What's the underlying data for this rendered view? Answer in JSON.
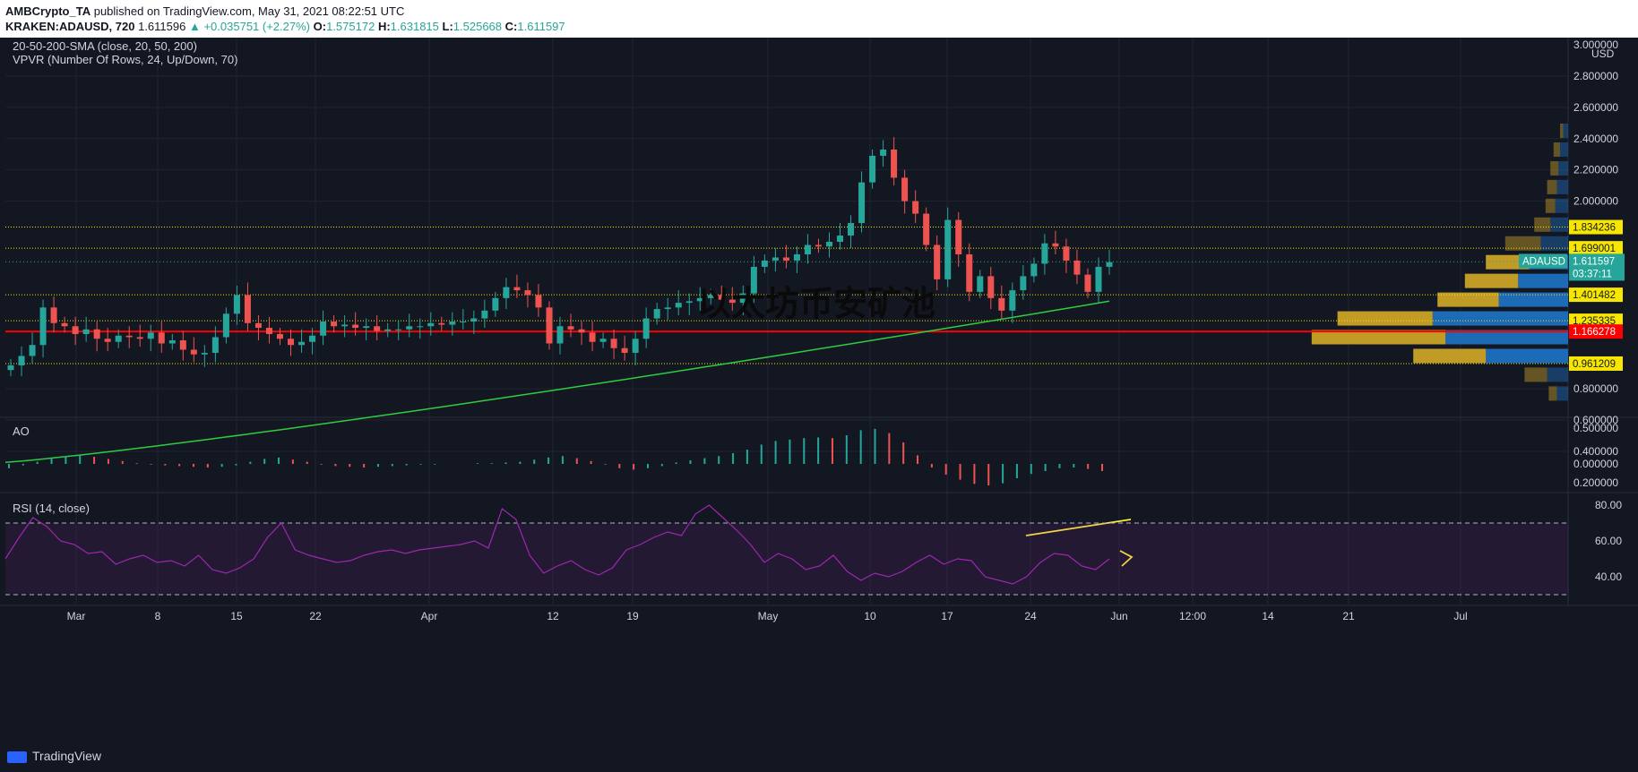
{
  "header": {
    "publisher": "AMBCrypto_TA",
    "published_text": "published on TradingView.com, May 31, 2021 08:22:51 UTC",
    "symbol": "KRAKEN:ADAUSD, 720",
    "last": "1.611596",
    "change": "▲ +0.035751 (+2.27%)",
    "o_label": "O:",
    "o_value": "1.575172",
    "h_label": "H:",
    "h_value": "1.631815",
    "l_label": "L:",
    "l_value": "1.525668",
    "c_label": "C:",
    "c_value": "1.611597"
  },
  "indicators": {
    "sma_label": "20-50-200-SMA (close, 20, 50, 200)",
    "vpvr_label": "VPVR (Number Of Rows, 24, Up/Down, 70)",
    "ao_label": "AO",
    "rsi_label": "RSI (14, close)"
  },
  "watermark": "以太坊币安矿池",
  "footer": {
    "brand": "TradingView"
  },
  "colors": {
    "background": "#131722",
    "up": "#26a69a",
    "down": "#ef5350",
    "sma200": "#2ecc40",
    "support_line": "#f7e600",
    "red_line": "#ff0000",
    "rsi": "#9c27b0",
    "vpvr_up": "#1e6fbf",
    "vpvr_down": "#c9a227",
    "arrow": "#ffeb3b"
  },
  "chart_data": {
    "type": "candlestick",
    "price_axis": {
      "unit": "USD",
      "ticks": [
        "3.000000",
        "2.800000",
        "2.600000",
        "2.400000",
        "2.200000",
        "2.000000",
        "0.800000",
        "0.600000",
        "0.400000",
        "0.200000"
      ],
      "ylim": [
        0.2,
        3.0
      ]
    },
    "time_axis": {
      "ticks": [
        "Mar",
        "8",
        "15",
        "22",
        "Apr",
        "12",
        "19",
        "May",
        "10",
        "17",
        "24",
        "Jun",
        "12:00",
        "14",
        "21",
        "Jul"
      ]
    },
    "level_tags": [
      {
        "value": 1.834236,
        "label": "1.834236",
        "style": "yellow"
      },
      {
        "value": 1.699001,
        "label": "1.699001",
        "style": "yellow"
      },
      {
        "value": 1.611597,
        "label": "1.611597",
        "style": "teal",
        "symbol": "ADAUSD",
        "countdown": "03:37:11"
      },
      {
        "value": 1.401482,
        "label": "1.401482",
        "style": "yellow"
      },
      {
        "value": 1.235335,
        "label": "1.235335",
        "style": "yellow"
      },
      {
        "value": 1.166278,
        "label": "1.166278",
        "style": "red"
      },
      {
        "value": 0.961209,
        "label": "0.961209",
        "style": "yellow"
      }
    ],
    "closes": [
      0.95,
      1.01,
      1.08,
      1.32,
      1.22,
      1.2,
      1.15,
      1.18,
      1.12,
      1.1,
      1.14,
      1.13,
      1.12,
      1.16,
      1.09,
      1.11,
      1.05,
      1.02,
      1.03,
      1.13,
      1.28,
      1.4,
      1.22,
      1.19,
      1.15,
      1.12,
      1.08,
      1.1,
      1.14,
      1.23,
      1.2,
      1.21,
      1.19,
      1.2,
      1.17,
      1.18,
      1.18,
      1.2,
      1.2,
      1.22,
      1.21,
      1.23,
      1.23,
      1.25,
      1.3,
      1.38,
      1.45,
      1.43,
      1.4,
      1.32,
      1.09,
      1.2,
      1.18,
      1.16,
      1.1,
      1.12,
      1.06,
      1.03,
      1.12,
      1.25,
      1.31,
      1.32,
      1.35,
      1.36,
      1.38,
      1.4,
      1.37,
      1.35,
      1.41,
      1.58,
      1.62,
      1.64,
      1.62,
      1.66,
      1.72,
      1.71,
      1.74,
      1.78,
      1.86,
      2.12,
      2.29,
      2.33,
      2.15,
      2.0,
      1.92,
      1.72,
      1.5,
      1.88,
      1.66,
      1.42,
      1.52,
      1.38,
      1.3,
      1.43,
      1.52,
      1.6,
      1.73,
      1.71,
      1.62,
      1.53,
      1.42,
      1.58,
      1.61
    ],
    "sma200_start": 0.33,
    "sma200_end": 1.36,
    "ao_values": [
      -0.06,
      -0.02,
      0.03,
      0.08,
      0.11,
      0.12,
      0.1,
      0.07,
      0.04,
      0.01,
      -0.01,
      -0.02,
      -0.03,
      -0.04,
      -0.05,
      -0.04,
      -0.02,
      0.03,
      0.07,
      0.09,
      0.06,
      0.03,
      -0.01,
      -0.03,
      -0.04,
      -0.05,
      -0.04,
      -0.03,
      -0.02,
      -0.01,
      -0.01,
      0.0,
      0.0,
      0.01,
      0.01,
      0.02,
      0.03,
      0.06,
      0.09,
      0.11,
      0.08,
      0.04,
      -0.01,
      -0.06,
      -0.08,
      -0.06,
      -0.03,
      0.02,
      0.05,
      0.08,
      0.11,
      0.15,
      0.2,
      0.27,
      0.32,
      0.34,
      0.36,
      0.37,
      0.36,
      0.4,
      0.47,
      0.49,
      0.43,
      0.3,
      0.12,
      -0.05,
      -0.15,
      -0.22,
      -0.28,
      -0.3,
      -0.27,
      -0.2,
      -0.14,
      -0.1,
      -0.06,
      -0.05,
      -0.07,
      -0.1
    ],
    "ao_axis": {
      "ticks": [
        "0.500000",
        "0.000000"
      ]
    },
    "rsi_values": [
      50,
      62,
      73,
      68,
      60,
      58,
      53,
      54,
      47,
      50,
      52,
      48,
      49,
      46,
      52,
      44,
      42,
      45,
      50,
      62,
      70,
      55,
      52,
      50,
      48,
      49,
      52,
      54,
      55,
      53,
      55,
      56,
      57,
      58,
      60,
      56,
      78,
      72,
      52,
      42,
      46,
      49,
      44,
      41,
      45,
      55,
      58,
      62,
      65,
      63,
      75,
      80,
      73,
      66,
      58,
      48,
      53,
      50,
      44,
      46,
      52,
      43,
      38,
      42,
      40,
      43,
      48,
      52,
      47,
      50,
      49,
      40,
      38,
      36,
      40,
      48,
      53,
      52,
      46,
      44,
      50
    ],
    "rsi_axis": {
      "ticks": [
        "80.00",
        "60.00",
        "40.00"
      ],
      "bands": [
        70,
        30
      ]
    },
    "vpvr_rows": [
      {
        "price": 2.45,
        "up": 6,
        "down": 4
      },
      {
        "price": 2.33,
        "up": 10,
        "down": 8
      },
      {
        "price": 2.21,
        "up": 12,
        "down": 10
      },
      {
        "price": 2.09,
        "up": 14,
        "down": 12
      },
      {
        "price": 1.97,
        "up": 16,
        "down": 12
      },
      {
        "price": 1.85,
        "up": 22,
        "down": 20
      },
      {
        "price": 1.73,
        "up": 34,
        "down": 44
      },
      {
        "price": 1.61,
        "up": 48,
        "down": 54
      },
      {
        "price": 1.49,
        "up": 62,
        "down": 66
      },
      {
        "price": 1.37,
        "up": 86,
        "down": 76
      },
      {
        "price": 1.25,
        "up": 168,
        "down": 118
      },
      {
        "price": 1.13,
        "up": 152,
        "down": 166
      },
      {
        "price": 1.01,
        "up": 102,
        "down": 90
      },
      {
        "price": 0.89,
        "up": 26,
        "down": 28
      },
      {
        "price": 0.77,
        "up": 14,
        "down": 10
      }
    ]
  }
}
